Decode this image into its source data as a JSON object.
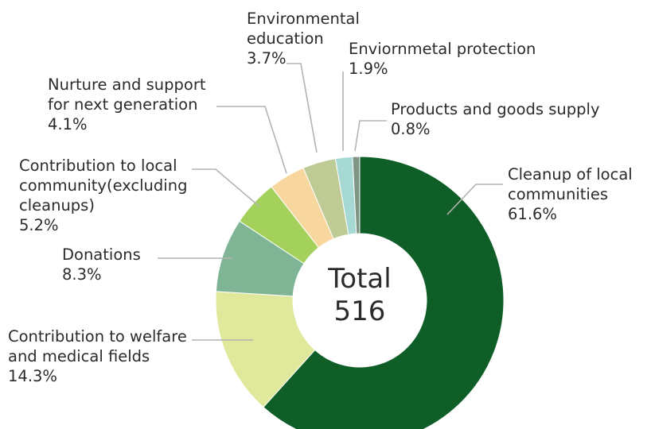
{
  "center": {
    "line1": "Total",
    "line2": "516"
  },
  "chart_data": {
    "type": "pie",
    "subtype": "donut",
    "categories": [
      "Cleanup of local communities",
      "Contribution to welfare and medical fields",
      "Donations",
      "Contribution to local community(excluding cleanups)",
      "Nurture and support for next generation",
      "Environmental education",
      "Enviornmetal protection",
      "Products and goods supply"
    ],
    "values": [
      61.6,
      14.3,
      8.3,
      5.2,
      4.1,
      3.7,
      1.9,
      0.8
    ],
    "unit": "%",
    "total": 516,
    "colors": [
      "#0f5e27",
      "#dfe89b",
      "#7fb495",
      "#a4d15c",
      "#f7d79e",
      "#bfcb94",
      "#a6d8d4",
      "#7f9684"
    ],
    "labels": [
      {
        "lines": [
          "Cleanup of local",
          "communities"
        ],
        "pct": "61.6%"
      },
      {
        "lines": [
          "Contribution to welfare",
          "and medical fields"
        ],
        "pct": "14.3%"
      },
      {
        "lines": [
          "Donations"
        ],
        "pct": "8.3%"
      },
      {
        "lines": [
          "Contribution to local",
          "community(excluding",
          "cleanups)"
        ],
        "pct": "5.2%"
      },
      {
        "lines": [
          "Nurture and support",
          "for next generation"
        ],
        "pct": "4.1%"
      },
      {
        "lines": [
          "Environmental",
          "education"
        ],
        "pct": "3.7%"
      },
      {
        "lines": [
          "Enviornmetal protection"
        ],
        "pct": "1.9%"
      },
      {
        "lines": [
          "Products and goods supply"
        ],
        "pct": "0.8%"
      }
    ]
  }
}
